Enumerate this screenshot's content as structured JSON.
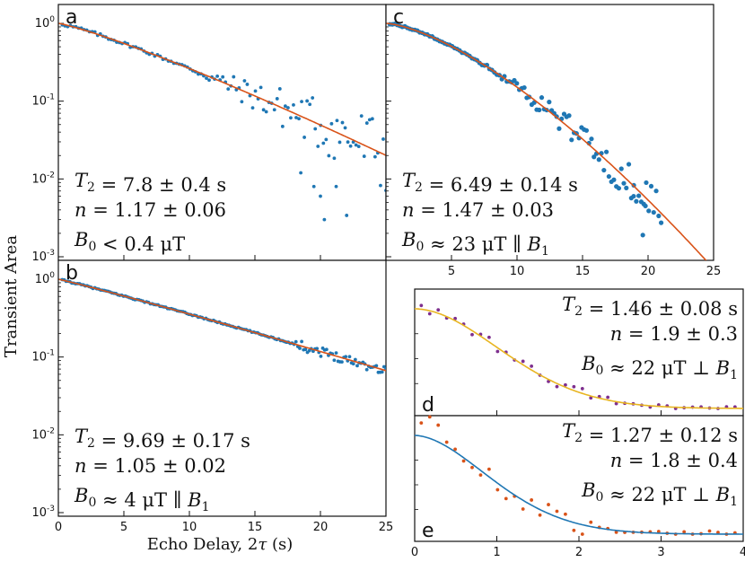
{
  "colors": {
    "blue": "#1f77b4",
    "orange": "#d95319",
    "yellow": "#e8b521",
    "purple": "#7e2f8e",
    "frame": "#111111"
  },
  "labels": {
    "ylabel": "Transient Area",
    "xlabel": "Echo Delay, 2τ (s)"
  },
  "chart_data": [
    {
      "id": "a",
      "type": "scatter",
      "yscale": "log",
      "xlim": [
        0,
        25
      ],
      "ylim": [
        0.001,
        1.5
      ],
      "yticks": [
        "10^0",
        "10^-1",
        "10^-2",
        "10^-3"
      ],
      "xticks": [],
      "series": [
        {
          "name": "data",
          "color": "blue"
        },
        {
          "name": "fit",
          "color": "orange",
          "T2": 7.8,
          "n": 1.17
        }
      ],
      "annotations": [
        "T2 = 7.8 ± 0.4 s",
        "n = 1.17 ± 0.06",
        "B0 < 0.4 μT"
      ]
    },
    {
      "id": "b",
      "type": "scatter",
      "yscale": "log",
      "xlim": [
        0,
        25
      ],
      "ylim": [
        0.001,
        1.5
      ],
      "yticks": [
        "10^0",
        "10^-1",
        "10^-2",
        "10^-3"
      ],
      "xticks": [
        "0",
        "5",
        "10",
        "15",
        "20",
        "25"
      ],
      "series": [
        {
          "name": "data",
          "color": "blue"
        },
        {
          "name": "fit",
          "color": "orange",
          "T2": 9.69,
          "n": 1.05
        }
      ],
      "annotations": [
        "T2 = 9.69 ± 0.17 s",
        "n = 1.05 ± 0.02",
        "B0 ≈ 4 μT ∥ B1"
      ]
    },
    {
      "id": "c",
      "type": "scatter",
      "yscale": "log",
      "xlim": [
        0,
        25
      ],
      "ylim": [
        0.001,
        1.5
      ],
      "xticks": [
        "5",
        "10",
        "15",
        "20",
        "25"
      ],
      "series": [
        {
          "name": "data",
          "color": "blue"
        },
        {
          "name": "fit",
          "color": "orange",
          "T2": 6.49,
          "n": 1.47
        }
      ],
      "annotations": [
        "T2 = 6.49 ± 0.14 s",
        "n = 1.47 ± 0.03",
        "B0 ≈ 23 μT ∥ B1"
      ]
    },
    {
      "id": "d",
      "type": "scatter",
      "yscale": "linear",
      "xlim": [
        0,
        4
      ],
      "ylim": [
        0,
        1
      ],
      "series": [
        {
          "name": "data",
          "color": "purple"
        },
        {
          "name": "fit",
          "color": "yellow",
          "T2": 1.46,
          "n": 1.9
        }
      ],
      "annotations": [
        "T2 = 1.46 ± 0.08 s",
        "n = 1.9 ± 0.3",
        "B0 ≈ 22 μT ⊥ B1"
      ]
    },
    {
      "id": "e",
      "type": "scatter",
      "yscale": "linear",
      "xlim": [
        0,
        4
      ],
      "ylim": [
        0,
        1
      ],
      "xticks": [
        "0",
        "1",
        "2",
        "3",
        "4"
      ],
      "series": [
        {
          "name": "data",
          "color": "orange"
        },
        {
          "name": "fit",
          "color": "blue",
          "T2": 1.27,
          "n": 1.8
        }
      ],
      "annotations": [
        "T2 = 1.27 ± 0.12 s",
        "n = 1.8 ± 0.4",
        "B0 ≈ 22 μT ⊥ B1"
      ]
    }
  ]
}
